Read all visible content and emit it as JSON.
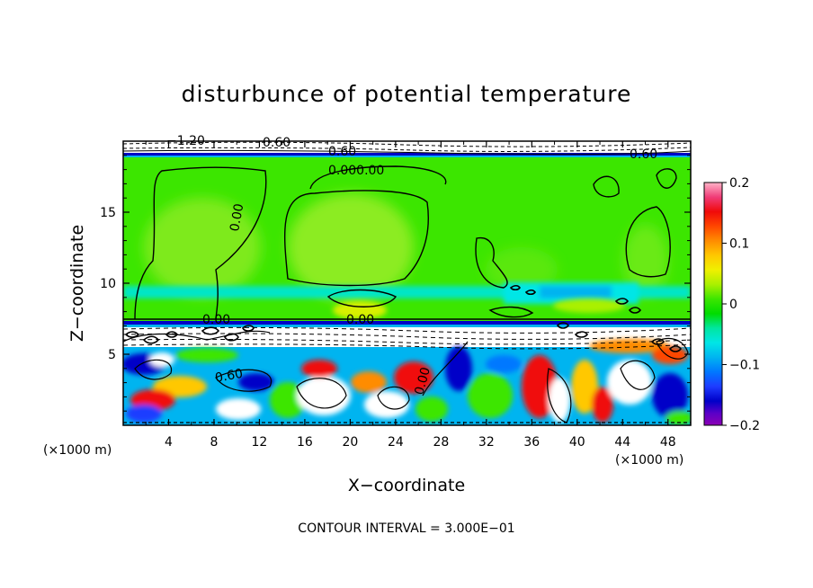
{
  "chart_data": {
    "type": "heatmap",
    "title": "disturbunce of potential temperature",
    "xlabel": "X−coordinate",
    "ylabel": "Z−coordinate",
    "x_unit": "(×1000 m)",
    "y_unit": "(×1000 m)",
    "xlim": [
      0,
      50
    ],
    "ylim": [
      0,
      20
    ],
    "x_ticks": [
      4,
      8,
      12,
      16,
      20,
      24,
      28,
      32,
      36,
      40,
      44,
      48
    ],
    "y_ticks": [
      5,
      10,
      15
    ],
    "colorbar": {
      "range": [
        -0.2,
        0.2
      ],
      "ticks": [
        0.2,
        0.1,
        0,
        -0.1,
        -0.2
      ],
      "tick_labels": [
        "0.2",
        "0.1",
        "0",
        "−0.1",
        "−0.2"
      ],
      "colors": [
        "#FFB4C8",
        "#F03C78",
        "#F00A0A",
        "#FF4600",
        "#FF8C00",
        "#FFC800",
        "#F0F000",
        "#AAF000",
        "#3CE600",
        "#00DC00",
        "#00E6A0",
        "#00E6E6",
        "#00B4F0",
        "#0078FF",
        "#1E3CFF",
        "#0000C8",
        "#5A00C8",
        "#8C00B4"
      ]
    },
    "contour_labels": [
      "−1.20",
      "0.60",
      "0.60",
      "0.000.00",
      "0.60",
      "0.00",
      "0.00",
      "0.60",
      "0.00",
      "0.00"
    ],
    "footer": "CONTOUR INTERVAL = 3.000E−01"
  }
}
